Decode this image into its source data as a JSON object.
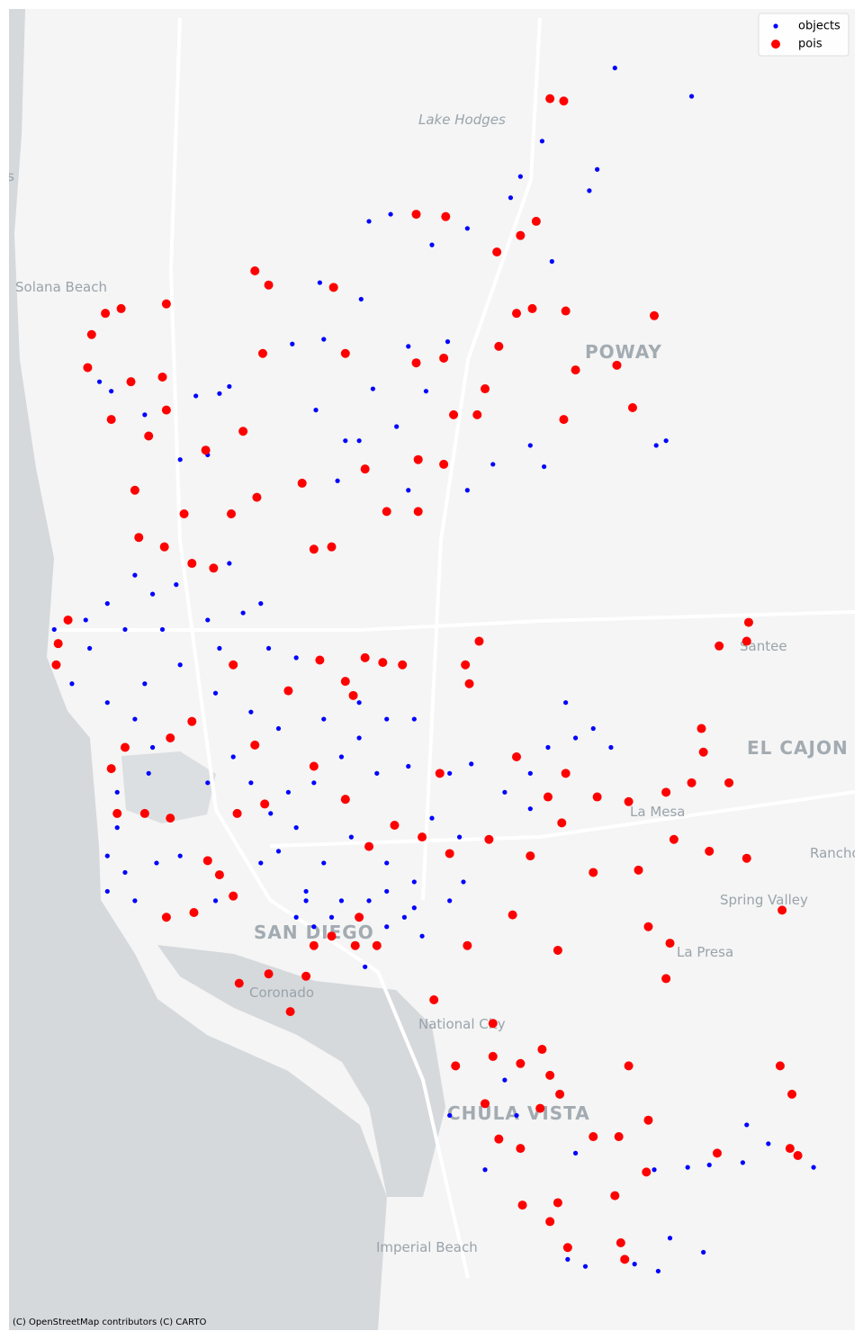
{
  "chart_data": {
    "type": "scatter",
    "xlim": [
      -117.28,
      -116.85
    ],
    "ylim": [
      32.545,
      33.105
    ],
    "legend": "upper right",
    "basemap_labels": [
      "Lake Hodges",
      "Encinitas",
      "Solana Beach",
      "POWAY",
      "Santee",
      "EL CAJON",
      "La Mesa",
      "Rancho San Diego",
      "Spring Valley",
      "La Presa",
      "SAN DIEGO",
      "Coronado",
      "National City",
      "CHULA VISTA",
      "Imperial Beach"
    ],
    "attribution": "(C) OpenStreetMap contributors (C) CARTO",
    "series": [
      {
        "name": "objects",
        "color": "#0000ff",
        "x": [
          -116.972,
          -116.933,
          -117.009,
          -117.02,
          -117.025,
          -116.981,
          -116.985,
          -117.097,
          -117.086,
          -117.065,
          -117.047,
          -117.004,
          -117.101,
          -117.122,
          -117.136,
          -117.12,
          -117.077,
          -117.068,
          -117.057,
          -117.095,
          -117.124,
          -117.228,
          -117.234,
          -117.211,
          -117.185,
          -117.173,
          -117.168,
          -117.193,
          -117.179,
          -117.109,
          -117.113,
          -117.083,
          -117.102,
          -117.077,
          -117.047,
          -117.034,
          -117.015,
          -117.008,
          -116.951,
          -116.946,
          -117.216,
          -117.207,
          -117.195,
          -117.168,
          -117.23,
          -117.241,
          -117.257,
          -117.248,
          -117.239,
          -117.221,
          -117.202,
          -117.179,
          -117.161,
          -117.152,
          -117.193,
          -117.211,
          -117.23,
          -117.216,
          -117.207,
          -117.209,
          -117.225,
          -117.225,
          -117.173,
          -117.148,
          -117.134,
          -117.175,
          -117.157,
          -117.143,
          -117.166,
          -117.157,
          -117.138,
          -117.147,
          -117.12,
          -117.102,
          -117.088,
          -117.074,
          -117.093,
          -117.125,
          -117.111,
          -117.179,
          -117.23,
          -117.221,
          -117.23,
          -117.216,
          -117.205,
          -117.193,
          -117.175,
          -117.152,
          -117.143,
          -117.134,
          -117.129,
          -117.12,
          -117.106,
          -117.088,
          -117.074,
          -117.079,
          -117.07,
          -117.065,
          -117.051,
          -117.049,
          -117.056,
          -117.125,
          -117.116,
          -117.129,
          -117.088,
          -117.099,
          -117.134,
          -117.111,
          -117.097,
          -117.088,
          -117.074,
          -117.056,
          -117.045,
          -117.028,
          -117.015,
          -116.997,
          -116.992,
          -116.983,
          -117.006,
          -116.974,
          -117.015,
          -117.077,
          -117.102,
          -117.056,
          -117.038,
          -117.028,
          -116.992,
          -117.022,
          -116.996,
          -116.987,
          -116.962,
          -116.95,
          -116.944,
          -116.927,
          -116.935,
          -116.905,
          -116.894,
          -116.871,
          -116.924,
          -116.907,
          -116.952
        ],
        "y": [
          33.08,
          33.068,
          33.049,
          33.034,
          33.025,
          33.037,
          33.028,
          33.015,
          33.018,
          33.005,
          33.012,
          32.998,
          32.982,
          32.989,
          32.963,
          32.965,
          32.962,
          32.943,
          32.964,
          32.944,
          32.935,
          32.943,
          32.947,
          32.933,
          32.941,
          32.942,
          32.945,
          32.914,
          32.916,
          32.922,
          32.905,
          32.928,
          32.922,
          32.901,
          32.901,
          32.912,
          32.92,
          32.911,
          32.92,
          32.922,
          32.865,
          32.857,
          32.861,
          32.87,
          32.853,
          32.846,
          32.842,
          32.819,
          32.834,
          32.842,
          32.842,
          32.846,
          32.849,
          32.853,
          32.827,
          32.819,
          32.811,
          32.804,
          32.792,
          32.781,
          32.773,
          32.758,
          32.834,
          32.834,
          32.83,
          32.815,
          32.807,
          32.8,
          32.788,
          32.777,
          32.773,
          32.764,
          32.804,
          32.796,
          32.804,
          32.804,
          32.781,
          32.777,
          32.788,
          32.777,
          32.746,
          32.739,
          32.731,
          32.727,
          32.743,
          32.746,
          32.727,
          32.743,
          32.748,
          32.758,
          32.727,
          32.743,
          32.754,
          32.743,
          32.735,
          32.72,
          32.712,
          32.762,
          32.754,
          32.735,
          32.727,
          32.716,
          32.72,
          32.731,
          32.716,
          32.699,
          32.72,
          32.727,
          32.727,
          32.731,
          32.724,
          32.781,
          32.785,
          32.773,
          32.766,
          32.811,
          32.796,
          32.8,
          32.792,
          32.792,
          32.781,
          32.784,
          32.811,
          32.636,
          32.613,
          32.651,
          32.62,
          32.636,
          32.575,
          32.572,
          32.573,
          32.57,
          32.584,
          32.578,
          32.614,
          32.632,
          32.624,
          32.614,
          32.615,
          32.616,
          32.613
        ]
      },
      {
        "name": "pois",
        "color": "#ff0000",
        "x": [
          -117.005,
          -116.998,
          -117.073,
          -117.058,
          -117.012,
          -117.02,
          -117.032,
          -117.155,
          -117.148,
          -117.231,
          -117.223,
          -117.2,
          -117.115,
          -117.022,
          -117.014,
          -116.997,
          -116.952,
          -117.238,
          -117.031,
          -117.151,
          -117.109,
          -117.073,
          -117.059,
          -116.971,
          -116.992,
          -117.202,
          -117.218,
          -117.24,
          -117.228,
          -117.2,
          -117.209,
          -117.18,
          -117.161,
          -117.054,
          -117.042,
          -116.998,
          -116.963,
          -117.038,
          -117.099,
          -117.072,
          -117.059,
          -117.131,
          -117.154,
          -117.167,
          -117.191,
          -117.216,
          -117.088,
          -117.072,
          -117.125,
          -117.116,
          -117.214,
          -117.201,
          -117.176,
          -117.187,
          -117.25,
          -117.255,
          -117.256,
          -116.919,
          -116.905,
          -116.904,
          -117.041,
          -117.048,
          -117.046,
          -117.08,
          -117.09,
          -117.099,
          -117.109,
          -117.105,
          -117.122,
          -117.138,
          -117.166,
          -117.155,
          -117.187,
          -117.198,
          -117.221,
          -117.228,
          -117.225,
          -117.211,
          -117.198,
          -117.164,
          -117.15,
          -117.125,
          -117.109,
          -117.097,
          -117.084,
          -117.07,
          -117.056,
          -117.036,
          -117.022,
          -116.997,
          -116.981,
          -116.965,
          -116.946,
          -116.933,
          -116.914,
          -116.928,
          -116.927,
          -116.942,
          -116.924,
          -116.905,
          -117.006,
          -116.999,
          -117.015,
          -116.983,
          -116.96,
          -117.061,
          -117.179,
          -117.173,
          -117.2,
          -117.186,
          -117.166,
          -117.125,
          -117.116,
          -117.104,
          -117.093,
          -117.129,
          -117.163,
          -117.148,
          -117.137,
          -117.102,
          -117.024,
          -117.001,
          -117.047,
          -116.944,
          -116.946,
          -116.955,
          -116.887,
          -117.064,
          -117.034,
          -117.034,
          -117.009,
          -117.005,
          -116.965,
          -117.02,
          -117.053,
          -117.0,
          -117.038,
          -117.031,
          -117.02,
          -117.01,
          -116.983,
          -116.97,
          -116.955,
          -116.92,
          -116.888,
          -116.882,
          -116.883,
          -116.879,
          -116.956,
          -117.019,
          -117.001,
          -116.972,
          -117.005,
          -116.969,
          -116.967,
          -116.996
        ],
        "y": [
          33.067,
          33.066,
          33.018,
          33.017,
          33.015,
          33.009,
          33.002,
          32.994,
          32.988,
          32.976,
          32.978,
          32.98,
          32.987,
          32.976,
          32.978,
          32.977,
          32.975,
          32.967,
          32.962,
          32.959,
          32.959,
          32.955,
          32.957,
          32.954,
          32.952,
          32.949,
          32.947,
          32.953,
          32.931,
          32.935,
          32.924,
          32.918,
          32.926,
          32.933,
          32.933,
          32.931,
          32.936,
          32.944,
          32.91,
          32.914,
          32.912,
          32.904,
          32.898,
          32.891,
          32.891,
          32.901,
          32.892,
          32.892,
          32.876,
          32.877,
          32.881,
          32.877,
          32.868,
          32.87,
          32.846,
          32.836,
          32.827,
          32.835,
          32.837,
          32.845,
          32.837,
          32.827,
          32.819,
          32.827,
          32.828,
          32.83,
          32.82,
          32.814,
          32.829,
          32.816,
          32.827,
          32.793,
          32.803,
          32.796,
          32.792,
          32.783,
          32.764,
          32.764,
          32.762,
          32.764,
          32.768,
          32.784,
          32.77,
          32.75,
          32.759,
          32.754,
          32.747,
          32.753,
          32.788,
          32.781,
          32.771,
          32.769,
          32.773,
          32.777,
          32.777,
          32.8,
          32.79,
          32.753,
          32.748,
          32.745,
          32.771,
          32.76,
          32.746,
          32.739,
          32.74,
          32.781,
          32.744,
          32.738,
          32.72,
          32.722,
          32.729,
          32.708,
          32.712,
          32.708,
          32.708,
          32.695,
          32.692,
          32.696,
          32.68,
          32.72,
          32.721,
          32.706,
          32.708,
          32.709,
          32.694,
          32.716,
          32.723,
          32.685,
          32.675,
          32.661,
          32.664,
          32.653,
          32.657,
          32.658,
          32.657,
          32.645,
          32.641,
          32.626,
          32.622,
          32.639,
          32.627,
          32.627,
          32.634,
          32.62,
          32.657,
          32.645,
          32.622,
          32.619,
          32.612,
          32.598,
          32.599,
          32.602,
          32.591,
          32.582,
          32.575,
          32.58
        ]
      }
    ]
  }
}
